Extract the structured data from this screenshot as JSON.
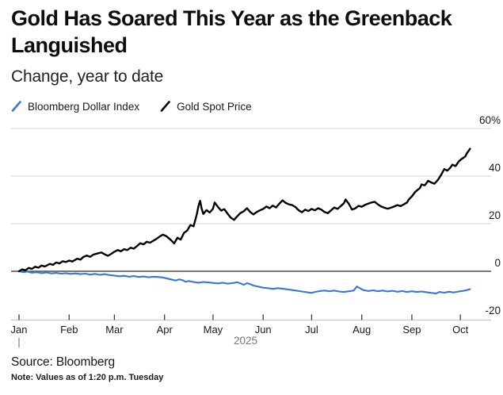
{
  "header": {
    "title": "Gold Has Soared This Year as the Greenback Languished",
    "subtitle": "Change, year to date"
  },
  "footer": {
    "source": "Source: Bloomberg",
    "note": "Note: Values as of 1:20 p.m. Tuesday"
  },
  "chart_data": {
    "type": "line",
    "title": "Gold Has Soared This Year as the Greenback Languished",
    "subtitle": "Change, year to date",
    "unit": "percent change year to date",
    "ylim": [
      -20,
      60
    ],
    "grid": "horizontal",
    "legend_position": "top-left",
    "y_axis": {
      "side": "right",
      "ticks": [
        {
          "label": "60%",
          "value": 60
        },
        {
          "label": "40",
          "value": 40
        },
        {
          "label": "20",
          "value": 20
        },
        {
          "label": "0",
          "value": 0
        },
        {
          "label": "-20",
          "value": -20
        }
      ],
      "gridline_values": [
        60,
        40,
        20
      ],
      "zero_line_value": 0
    },
    "x_axis": {
      "year_label": "2025",
      "months": [
        {
          "label": "Jan",
          "start_day": 0
        },
        {
          "label": "Feb",
          "start_day": 31
        },
        {
          "label": "Mar",
          "start_day": 59
        },
        {
          "label": "Apr",
          "start_day": 90
        },
        {
          "label": "May",
          "start_day": 120
        },
        {
          "label": "Jun",
          "start_day": 151
        },
        {
          "label": "Jul",
          "start_day": 181
        },
        {
          "label": "Aug",
          "start_day": 212
        },
        {
          "label": "Sep",
          "start_day": 243
        },
        {
          "label": "Oct",
          "start_day": 273
        }
      ],
      "last_day": 279
    },
    "colors": {
      "dollar_index_blue": "#3a76d8",
      "gold_black": "#000000",
      "gridline": "#d9d9d9",
      "zero_line": "#4c4c4c",
      "axis_line": "#c6c6c6",
      "tick": "#3c3c3c",
      "year_gray": "#757575"
    },
    "series": [
      {
        "name": "Bloomberg Dollar Index",
        "color": "#3a76d8",
        "points": [
          [
            0,
            0
          ],
          [
            3,
            -0.4
          ],
          [
            5,
            -0.1
          ],
          [
            8,
            -0.6
          ],
          [
            11,
            -0.4
          ],
          [
            14,
            -0.8
          ],
          [
            17,
            -0.5
          ],
          [
            20,
            -0.9
          ],
          [
            23,
            -0.7
          ],
          [
            26,
            -1.0
          ],
          [
            29,
            -0.8
          ],
          [
            32,
            -1.1
          ],
          [
            35,
            -0.9
          ],
          [
            38,
            -1.2
          ],
          [
            41,
            -1.0
          ],
          [
            44,
            -1.4
          ],
          [
            47,
            -1.1
          ],
          [
            50,
            -1.5
          ],
          [
            53,
            -1.2
          ],
          [
            56,
            -1.6
          ],
          [
            59,
            -1.8
          ],
          [
            62,
            -2.1
          ],
          [
            65,
            -1.9
          ],
          [
            68,
            -2.3
          ],
          [
            71,
            -2.0
          ],
          [
            74,
            -2.4
          ],
          [
            77,
            -2.2
          ],
          [
            80,
            -2.5
          ],
          [
            83,
            -2.3
          ],
          [
            86,
            -2.4
          ],
          [
            89,
            -2.6
          ],
          [
            92,
            -3.1
          ],
          [
            95,
            -3.6
          ],
          [
            97,
            -3.9
          ],
          [
            99,
            -3.4
          ],
          [
            101,
            -3.7
          ],
          [
            103,
            -4.4
          ],
          [
            105,
            -4.1
          ],
          [
            108,
            -4.5
          ],
          [
            111,
            -4.8
          ],
          [
            114,
            -4.5
          ],
          [
            117,
            -4.7
          ],
          [
            120,
            -4.9
          ],
          [
            123,
            -5.1
          ],
          [
            126,
            -4.8
          ],
          [
            129,
            -5.2
          ],
          [
            132,
            -5.0
          ],
          [
            135,
            -4.6
          ],
          [
            137,
            -5.1
          ],
          [
            139,
            -5.7
          ],
          [
            141,
            -5.0
          ],
          [
            143,
            -5.4
          ],
          [
            145,
            -6.0
          ],
          [
            147,
            -6.3
          ],
          [
            149,
            -6.6
          ],
          [
            151,
            -6.9
          ],
          [
            154,
            -7.1
          ],
          [
            157,
            -7.4
          ],
          [
            160,
            -7.1
          ],
          [
            163,
            -7.3
          ],
          [
            166,
            -7.6
          ],
          [
            169,
            -7.9
          ],
          [
            172,
            -8.2
          ],
          [
            175,
            -8.5
          ],
          [
            178,
            -8.8
          ],
          [
            181,
            -9.1
          ],
          [
            183,
            -8.7
          ],
          [
            186,
            -8.3
          ],
          [
            189,
            -8.1
          ],
          [
            192,
            -8.4
          ],
          [
            195,
            -8.1
          ],
          [
            198,
            -8.5
          ],
          [
            201,
            -8.7
          ],
          [
            204,
            -8.4
          ],
          [
            207,
            -8.1
          ],
          [
            209,
            -6.4
          ],
          [
            211,
            -7.2
          ],
          [
            213,
            -7.9
          ],
          [
            216,
            -8.3
          ],
          [
            219,
            -8.0
          ],
          [
            222,
            -8.4
          ],
          [
            225,
            -8.1
          ],
          [
            228,
            -8.5
          ],
          [
            231,
            -8.2
          ],
          [
            234,
            -8.6
          ],
          [
            237,
            -8.3
          ],
          [
            240,
            -8.7
          ],
          [
            243,
            -8.4
          ],
          [
            246,
            -8.7
          ],
          [
            249,
            -8.5
          ],
          [
            252,
            -8.8
          ],
          [
            255,
            -9.1
          ],
          [
            258,
            -9.3
          ],
          [
            260,
            -8.7
          ],
          [
            263,
            -9.0
          ],
          [
            266,
            -8.6
          ],
          [
            269,
            -8.9
          ],
          [
            272,
            -8.5
          ],
          [
            275,
            -8.2
          ],
          [
            277,
            -7.9
          ],
          [
            279,
            -7.5
          ]
        ]
      },
      {
        "name": "Gold Spot Price",
        "color": "#000000",
        "points": [
          [
            0,
            0
          ],
          [
            2,
            0.8
          ],
          [
            4,
            0.4
          ],
          [
            6,
            1.4
          ],
          [
            8,
            1.0
          ],
          [
            10,
            1.9
          ],
          [
            12,
            1.5
          ],
          [
            14,
            2.4
          ],
          [
            16,
            2.0
          ],
          [
            19,
            3.1
          ],
          [
            21,
            2.7
          ],
          [
            23,
            3.7
          ],
          [
            25,
            3.3
          ],
          [
            27,
            4.2
          ],
          [
            29,
            3.9
          ],
          [
            31,
            4.5
          ],
          [
            33,
            4.1
          ],
          [
            36,
            5.3
          ],
          [
            38,
            4.9
          ],
          [
            40,
            6.1
          ],
          [
            42,
            6.6
          ],
          [
            44,
            6.1
          ],
          [
            46,
            7.0
          ],
          [
            48,
            7.4
          ],
          [
            51,
            7.9
          ],
          [
            53,
            7.1
          ],
          [
            55,
            6.5
          ],
          [
            57,
            7.3
          ],
          [
            59,
            8.2
          ],
          [
            61,
            8.9
          ],
          [
            63,
            8.4
          ],
          [
            65,
            9.3
          ],
          [
            67,
            8.9
          ],
          [
            69,
            9.9
          ],
          [
            71,
            9.5
          ],
          [
            73,
            10.6
          ],
          [
            75,
            11.8
          ],
          [
            77,
            11.3
          ],
          [
            79,
            12.4
          ],
          [
            81,
            12.0
          ],
          [
            83,
            12.8
          ],
          [
            85,
            13.6
          ],
          [
            87,
            14.6
          ],
          [
            89,
            15.4
          ],
          [
            91,
            14.8
          ],
          [
            93,
            13.7
          ],
          [
            95,
            12.4
          ],
          [
            96,
            11.7
          ],
          [
            98,
            14.1
          ],
          [
            100,
            13.3
          ],
          [
            102,
            16.1
          ],
          [
            104,
            17.1
          ],
          [
            106,
            19.4
          ],
          [
            108,
            18.9
          ],
          [
            109,
            21.5
          ],
          [
            110,
            24.0
          ],
          [
            111,
            27.5
          ],
          [
            112,
            29.6
          ],
          [
            113,
            26.3
          ],
          [
            114,
            24.1
          ],
          [
            116,
            25.7
          ],
          [
            118,
            24.7
          ],
          [
            120,
            26.3
          ],
          [
            121,
            28.9
          ],
          [
            123,
            27.1
          ],
          [
            125,
            25.5
          ],
          [
            127,
            26.1
          ],
          [
            129,
            24.2
          ],
          [
            131,
            22.5
          ],
          [
            133,
            21.6
          ],
          [
            135,
            23.1
          ],
          [
            137,
            24.5
          ],
          [
            139,
            25.2
          ],
          [
            141,
            26.5
          ],
          [
            143,
            24.9
          ],
          [
            145,
            23.9
          ],
          [
            147,
            24.9
          ],
          [
            149,
            25.6
          ],
          [
            151,
            26.2
          ],
          [
            153,
            27.2
          ],
          [
            155,
            26.5
          ],
          [
            157,
            27.6
          ],
          [
            159,
            26.8
          ],
          [
            161,
            28.4
          ],
          [
            163,
            29.8
          ],
          [
            165,
            28.7
          ],
          [
            167,
            28.1
          ],
          [
            169,
            27.8
          ],
          [
            171,
            27.0
          ],
          [
            173,
            25.6
          ],
          [
            175,
            24.8
          ],
          [
            177,
            25.9
          ],
          [
            179,
            25.3
          ],
          [
            181,
            26.2
          ],
          [
            183,
            25.6
          ],
          [
            185,
            26.5
          ],
          [
            187,
            25.9
          ],
          [
            189,
            24.9
          ],
          [
            191,
            24.4
          ],
          [
            193,
            25.6
          ],
          [
            195,
            26.8
          ],
          [
            197,
            26.2
          ],
          [
            199,
            27.4
          ],
          [
            201,
            28.6
          ],
          [
            202,
            30.2
          ],
          [
            204,
            28.3
          ],
          [
            206,
            25.9
          ],
          [
            208,
            26.4
          ],
          [
            210,
            27.5
          ],
          [
            212,
            27.1
          ],
          [
            214,
            27.9
          ],
          [
            216,
            28.4
          ],
          [
            218,
            28.9
          ],
          [
            220,
            29.2
          ],
          [
            222,
            28.1
          ],
          [
            224,
            27.2
          ],
          [
            226,
            26.7
          ],
          [
            228,
            26.3
          ],
          [
            230,
            26.7
          ],
          [
            232,
            27.2
          ],
          [
            234,
            27.8
          ],
          [
            236,
            27.4
          ],
          [
            238,
            28.1
          ],
          [
            240,
            28.9
          ],
          [
            241,
            30.1
          ],
          [
            243,
            31.5
          ],
          [
            245,
            33.3
          ],
          [
            246,
            33.9
          ],
          [
            248,
            35.0
          ],
          [
            249,
            36.5
          ],
          [
            251,
            36.1
          ],
          [
            253,
            38.0
          ],
          [
            255,
            37.3
          ],
          [
            257,
            36.8
          ],
          [
            259,
            38.3
          ],
          [
            261,
            40.4
          ],
          [
            263,
            42.9
          ],
          [
            265,
            42.3
          ],
          [
            267,
            43.7
          ],
          [
            268,
            44.8
          ],
          [
            270,
            44.2
          ],
          [
            272,
            46.2
          ],
          [
            274,
            47.3
          ],
          [
            276,
            48.2
          ],
          [
            277,
            49.6
          ],
          [
            278,
            50.5
          ],
          [
            279,
            51.5
          ]
        ]
      }
    ]
  }
}
